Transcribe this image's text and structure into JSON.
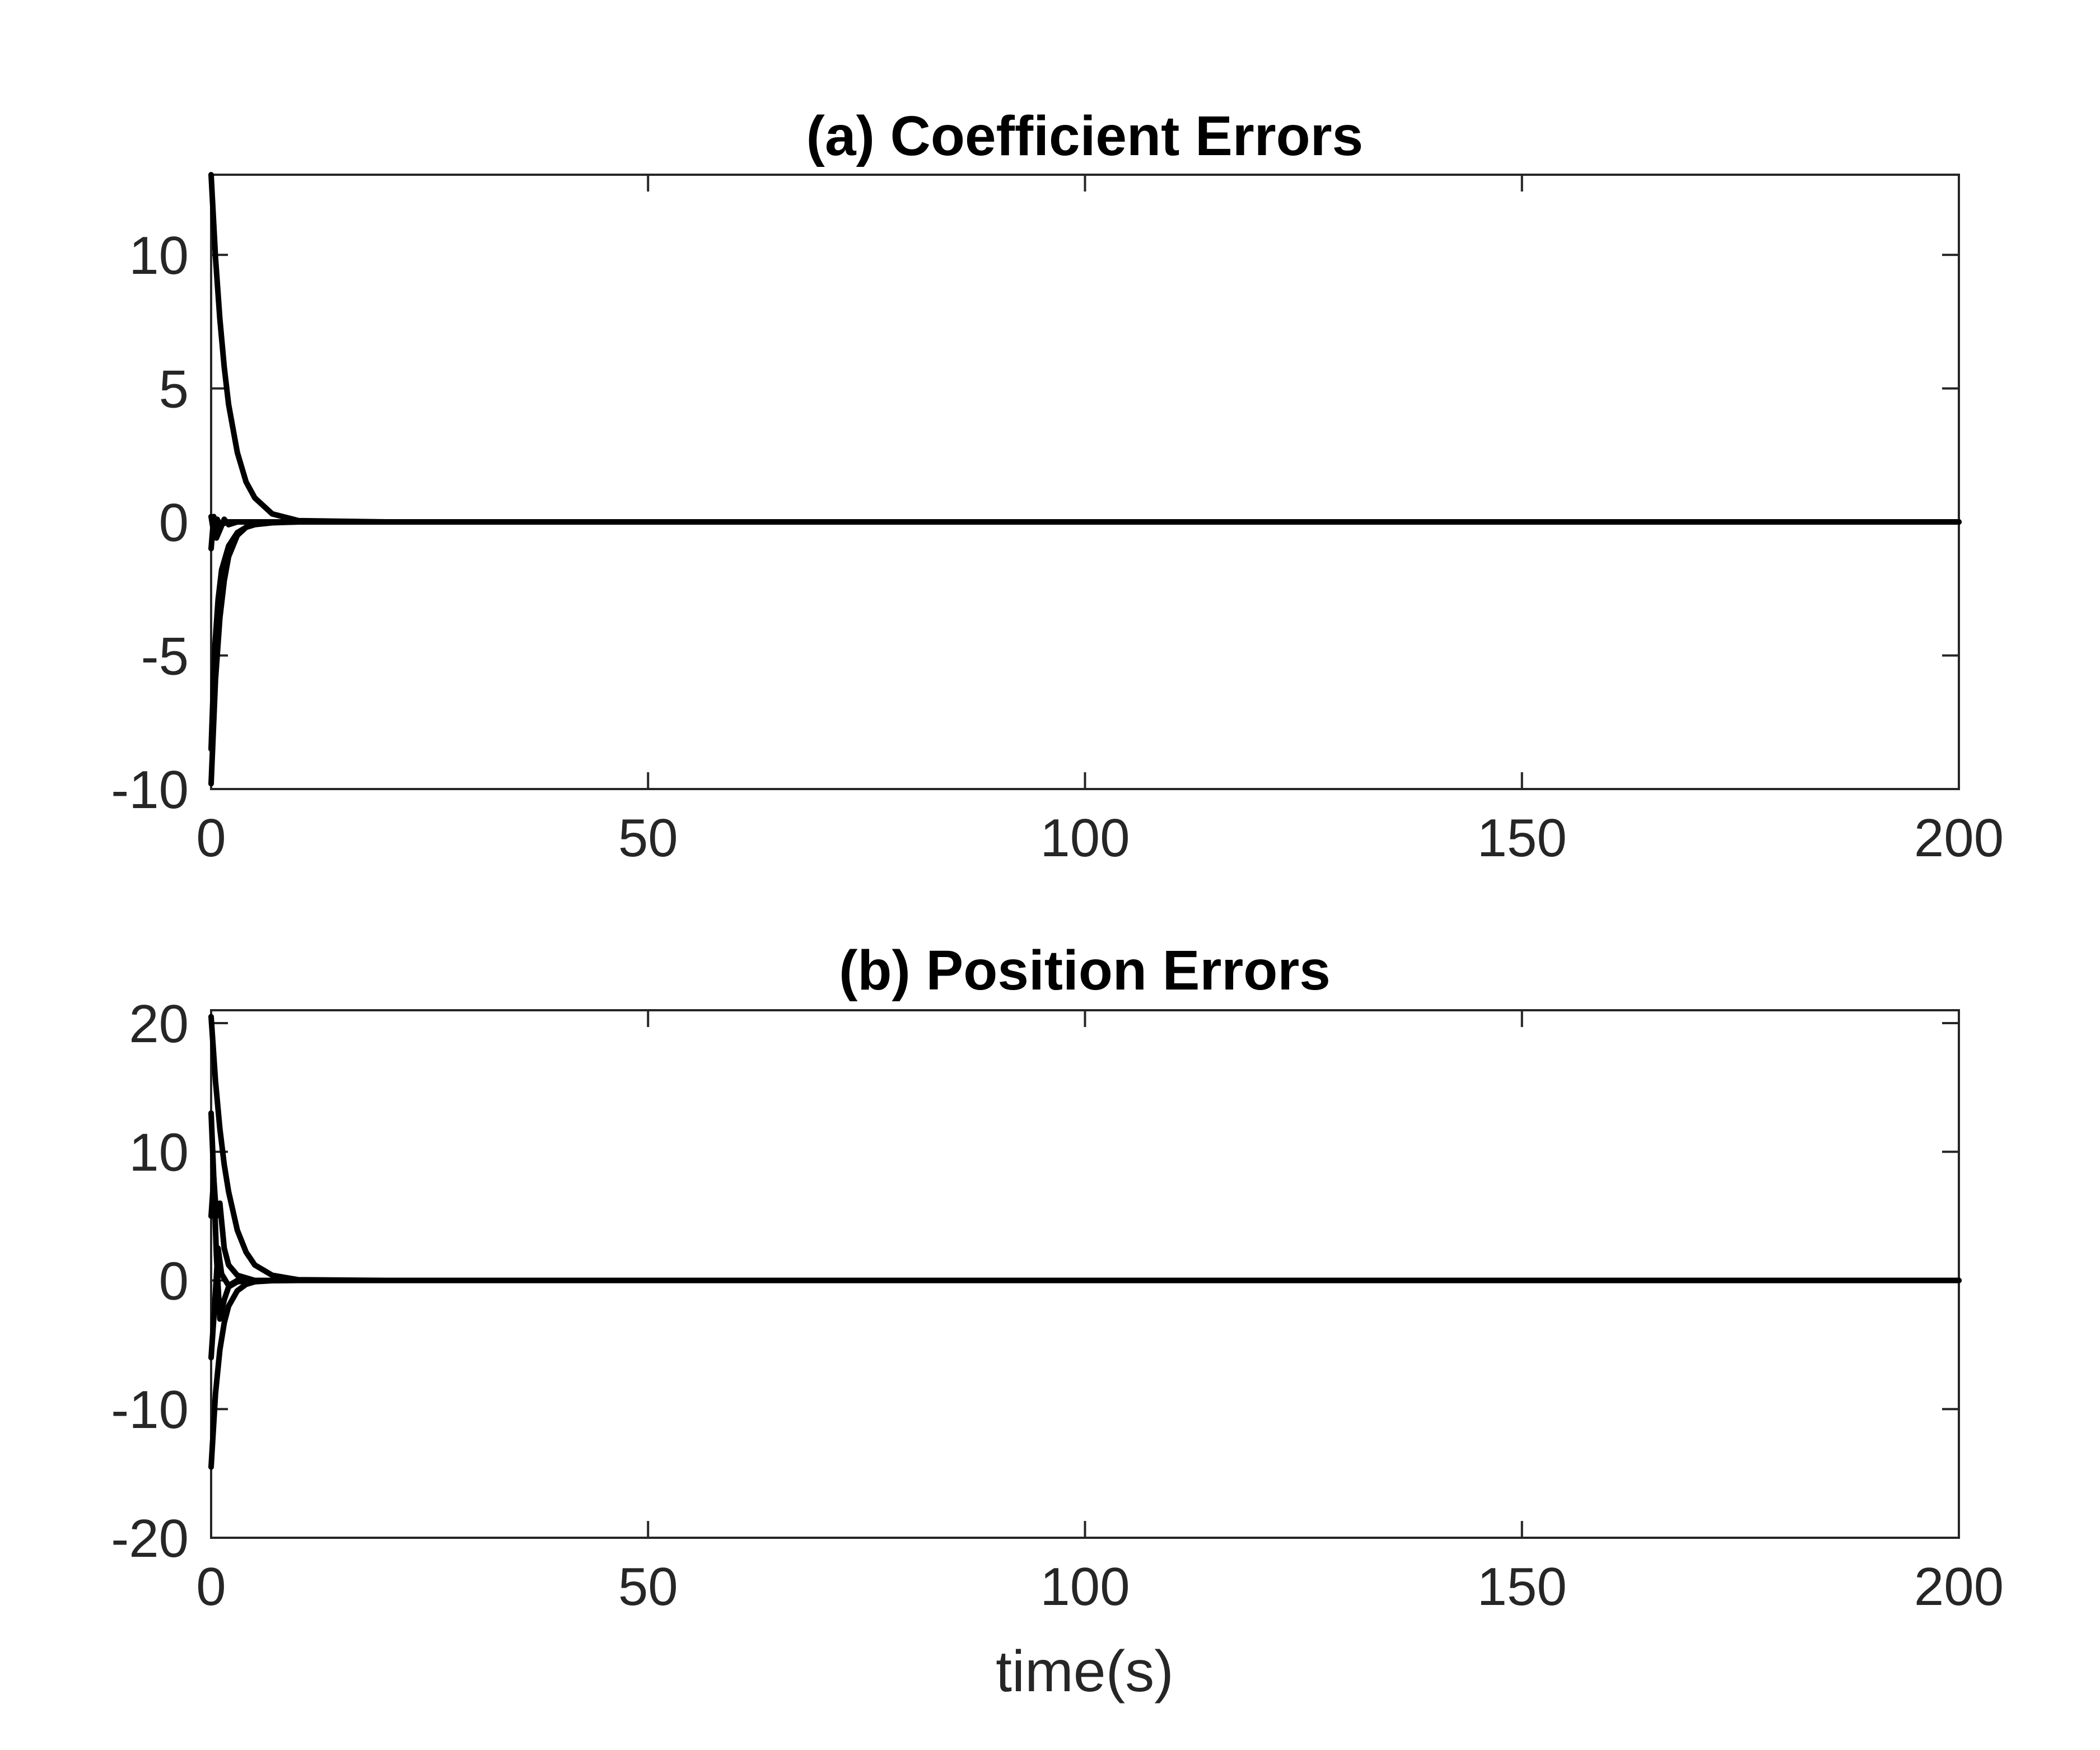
{
  "chart_data": [
    {
      "type": "line",
      "title": "(a) Coefficient Errors",
      "xlabel": "",
      "ylabel": "",
      "xlim": [
        0,
        200
      ],
      "ylim": [
        -10,
        13
      ],
      "xticks": [
        0,
        50,
        100,
        150,
        200
      ],
      "yticks": [
        -10,
        -5,
        0,
        5,
        10
      ],
      "grid": false,
      "color": "#000000",
      "series": [
        {
          "x": [
            0,
            0.5,
            1,
            1.5,
            2,
            3,
            4,
            5,
            7,
            10,
            20,
            50,
            100,
            150,
            200
          ],
          "y": [
            13,
            9.9,
            7.6,
            5.8,
            4.4,
            2.6,
            1.5,
            0.9,
            0.3,
            0.05,
            0,
            0,
            0,
            0,
            0
          ]
        },
        {
          "x": [
            0,
            0.5,
            1,
            1.5,
            2,
            3,
            4,
            5,
            7,
            10,
            20,
            50,
            100,
            150,
            200
          ],
          "y": [
            -9.8,
            -5.9,
            -3.6,
            -2.2,
            -1.3,
            -0.5,
            -0.2,
            -0.08,
            -0.02,
            0,
            0,
            0,
            0,
            0,
            0
          ]
        },
        {
          "x": [
            0,
            0.4,
            0.8,
            1.2,
            2,
            3,
            4,
            5,
            7,
            10,
            200
          ],
          "y": [
            -8.5,
            -4.8,
            -2.9,
            -1.8,
            -0.9,
            -0.4,
            -0.2,
            -0.1,
            -0.03,
            0,
            0
          ]
        },
        {
          "x": [
            0,
            0.3,
            0.6,
            1,
            1.5,
            2,
            3,
            5,
            200
          ],
          "y": [
            -1,
            0.2,
            -0.6,
            -0.3,
            0.1,
            -0.1,
            0,
            0,
            0
          ]
        },
        {
          "x": [
            0,
            0.3,
            0.7,
            1,
            2,
            3,
            5,
            200
          ],
          "y": [
            0.2,
            -0.4,
            0.1,
            -0.1,
            0,
            0,
            0,
            0
          ]
        }
      ]
    },
    {
      "type": "line",
      "title": "(b) Position Errors",
      "xlabel": "time(s)",
      "ylabel": "",
      "xlim": [
        0,
        200
      ],
      "ylim": [
        -20,
        21
      ],
      "xticks": [
        0,
        50,
        100,
        150,
        200
      ],
      "yticks": [
        -20,
        -10,
        0,
        10,
        20
      ],
      "grid": false,
      "color": "#000000",
      "series": [
        {
          "x": [
            0,
            0.5,
            1,
            1.5,
            2,
            3,
            4,
            5,
            7,
            10,
            20,
            50,
            100,
            150,
            200
          ],
          "y": [
            20.5,
            15.5,
            11.8,
            9.0,
            6.9,
            3.9,
            2.2,
            1.2,
            0.4,
            0.05,
            0,
            0,
            0,
            0,
            0
          ]
        },
        {
          "x": [
            0,
            0.5,
            1,
            1.5,
            2,
            3,
            4,
            5,
            7,
            10,
            20,
            50,
            100,
            150,
            200
          ],
          "y": [
            -14.5,
            -8.8,
            -5.4,
            -3.3,
            -2.0,
            -0.8,
            -0.3,
            -0.1,
            -0.02,
            0,
            0,
            0,
            0,
            0,
            0
          ]
        },
        {
          "x": [
            0,
            0.3,
            0.6,
            1,
            1.5,
            2,
            3,
            5,
            200
          ],
          "y": [
            13,
            8,
            5,
            6,
            2.5,
            1.2,
            0.4,
            0,
            0
          ]
        },
        {
          "x": [
            0,
            0.3,
            0.6,
            1,
            1.5,
            2,
            3,
            5,
            200
          ],
          "y": [
            5,
            8,
            2,
            -3,
            -1.5,
            -0.5,
            -0.1,
            0,
            0
          ]
        },
        {
          "x": [
            0,
            0.4,
            0.8,
            1.2,
            2,
            3,
            5,
            200
          ],
          "y": [
            -6,
            -2,
            2.5,
            0.5,
            -0.4,
            0,
            0,
            0
          ]
        }
      ]
    }
  ]
}
